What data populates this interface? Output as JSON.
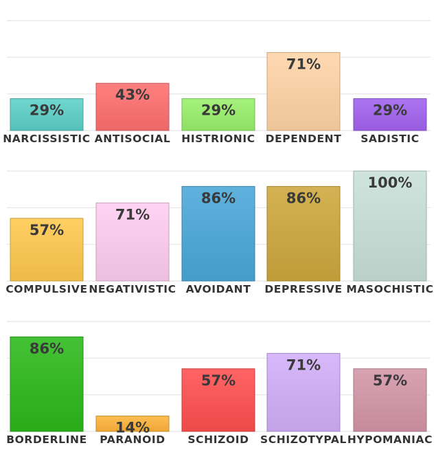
{
  "chart_data": [
    {
      "type": "bar",
      "categories": [
        "NARCISSISTIC",
        "ANTISOCIAL",
        "HISTRIONIC",
        "DEPENDENT",
        "SADISTIC"
      ],
      "values": [
        29,
        43,
        29,
        71,
        29
      ],
      "value_labels": [
        "29%",
        "43%",
        "29%",
        "71%",
        "29%"
      ],
      "colors": [
        "#5cd0c8",
        "#ff6f6f",
        "#99f06a",
        "#ffd4a6",
        "#a262f0"
      ],
      "ylim": [
        0,
        100
      ],
      "grid": true
    },
    {
      "type": "bar",
      "categories": [
        "COMPULSIVE",
        "NEGATIVISTIC",
        "AVOIDANT",
        "DEPRESSIVE",
        "MASOCHISTIC"
      ],
      "values": [
        57,
        71,
        86,
        86,
        100
      ],
      "value_labels": [
        "57%",
        "71%",
        "86%",
        "86%",
        "100%"
      ],
      "colors": [
        "#ffc84e",
        "#ffcdf0",
        "#49a8d8",
        "#cda83c",
        "#c9e0d8"
      ],
      "ylim": [
        0,
        100
      ],
      "grid": true
    },
    {
      "type": "bar",
      "categories": [
        "BORDERLINE",
        "PARANOID",
        "SCHIZOID",
        "SCHIZOTYPAL",
        "HYPOMANIAC"
      ],
      "values": [
        86,
        14,
        57,
        71,
        57
      ],
      "value_labels": [
        "86%",
        "14%",
        "57%",
        "71%",
        "57%"
      ],
      "colors": [
        "#2cb81a",
        "#ffb43a",
        "#ff4f4f",
        "#d2aef8",
        "#d495a8"
      ],
      "ylim": [
        0,
        100
      ],
      "grid": true
    }
  ]
}
